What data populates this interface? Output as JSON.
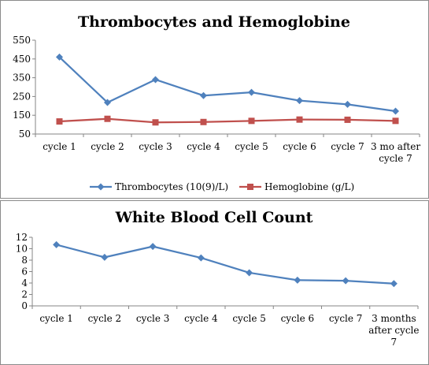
{
  "chart_data": [
    {
      "type": "line",
      "title": "Thrombocytes and Hemoglobine",
      "categories": [
        [
          "cycle 1"
        ],
        [
          "cycle 2"
        ],
        [
          "cycle 3"
        ],
        [
          "cycle 4"
        ],
        [
          "cycle 5"
        ],
        [
          "cycle 6"
        ],
        [
          "cycle 7"
        ],
        [
          "3 mo after",
          "cycle 7"
        ]
      ],
      "yticks": [
        "50",
        "150",
        "250",
        "350",
        "450",
        "550"
      ],
      "ylim": [
        50,
        550
      ],
      "grid": false,
      "legend_position": "bottom",
      "series": [
        {
          "name": "Thrombocytes (10(9)/L)",
          "color": "#4f81bd",
          "marker": "diamond",
          "values": [
            460,
            218,
            340,
            255,
            272,
            228,
            208,
            172
          ]
        },
        {
          "name": "Hemoglobine (g/L)",
          "color": "#c0504d",
          "marker": "square",
          "values": [
            117,
            131,
            112,
            114,
            120,
            127,
            126,
            120
          ]
        }
      ]
    },
    {
      "type": "line",
      "title": "White Blood Cell Count",
      "categories": [
        [
          "cycle 1"
        ],
        [
          "cycle 2"
        ],
        [
          "cycle 3"
        ],
        [
          "cycle 4"
        ],
        [
          "cycle 5"
        ],
        [
          "cycle 6"
        ],
        [
          "cycle 7"
        ],
        [
          "3 months",
          "after cycle",
          "7"
        ]
      ],
      "yticks": [
        "0",
        "2",
        "4",
        "6",
        "8",
        "10",
        "12"
      ],
      "ylim": [
        0,
        12
      ],
      "grid": false,
      "legend_position": "none",
      "series": [
        {
          "color": "#4f81bd",
          "marker": "diamond",
          "values": [
            10.7,
            8.5,
            10.4,
            8.4,
            5.8,
            4.5,
            4.4,
            3.9
          ]
        }
      ]
    }
  ]
}
